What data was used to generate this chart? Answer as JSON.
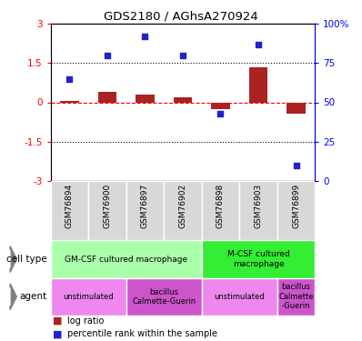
{
  "title": "GDS2180 / AGhsA270924",
  "samples": [
    "GSM76894",
    "GSM76900",
    "GSM76897",
    "GSM76902",
    "GSM76898",
    "GSM76903",
    "GSM76899"
  ],
  "log_ratio": [
    0.05,
    0.4,
    0.3,
    0.2,
    -0.25,
    1.35,
    -0.45
  ],
  "percentile_rank": [
    65,
    80,
    92,
    80,
    43,
    87,
    10
  ],
  "ylim_left": [
    -3,
    3
  ],
  "ylim_right": [
    0,
    100
  ],
  "left_ticks": [
    -3,
    -1.5,
    0,
    1.5,
    3
  ],
  "right_ticks": [
    0,
    25,
    50,
    75,
    100
  ],
  "right_tick_labels": [
    "0",
    "25",
    "50",
    "75",
    "100%"
  ],
  "dotted_lines": [
    -1.5,
    1.5
  ],
  "bar_color": "#aa2222",
  "dot_color": "#2222cc",
  "cell_type_groups": [
    {
      "label": "GM-CSF cultured macrophage",
      "start": 0,
      "end": 4,
      "color": "#aaffaa"
    },
    {
      "label": "M-CSF cultured\nmacrophage",
      "start": 4,
      "end": 7,
      "color": "#33ee33"
    }
  ],
  "agent_groups": [
    {
      "label": "unstimulated",
      "start": 0,
      "end": 2,
      "color": "#ee88ee"
    },
    {
      "label": "bacillus\nCalmette-Guerin",
      "start": 2,
      "end": 4,
      "color": "#cc55cc"
    },
    {
      "label": "unstimulated",
      "start": 4,
      "end": 6,
      "color": "#ee88ee"
    },
    {
      "label": "bacillus\nCalmette\n-Guerin",
      "start": 6,
      "end": 7,
      "color": "#cc55cc"
    }
  ]
}
